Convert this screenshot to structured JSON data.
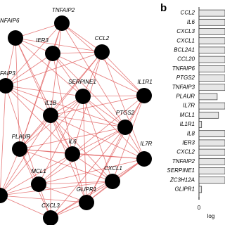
{
  "panel_a": {
    "nodes": [
      {
        "label": "TNFAIP2"
      },
      {
        "label": "NFAIP6"
      },
      {
        "label": "IER3"
      },
      {
        "label": "CCL2"
      },
      {
        "label": "FAIP3"
      },
      {
        "label": "SERPINE1"
      },
      {
        "label": "IL1R1"
      },
      {
        "label": "IL1B"
      },
      {
        "label": "PTGS2"
      },
      {
        "label": "PLAUR"
      },
      {
        "label": "IL6"
      },
      {
        "label": "IL7R"
      },
      {
        "label": "MCL1"
      },
      {
        "label": "CXCL1"
      },
      {
        "label": "GLIPR1"
      },
      {
        "label": "CXCL3"
      }
    ]
  },
  "chart_data": {
    "type": "bar",
    "orientation": "horizontal",
    "panel_label": "b",
    "x_label": "log",
    "categories": [
      "CCL2",
      "IL6",
      "CXCL3",
      "CXCL1",
      "BCL2A1",
      "CCL20",
      "TNFAIP6",
      "PTGS2",
      "TNFAIP3",
      "PLAUR",
      "IL7R",
      "MCL1",
      "IL1R1",
      "IL8",
      "IER3",
      "CXCL2",
      "TNFAIP2",
      "SERPINE1",
      "ZC3H12A",
      "GLIPR1"
    ],
    "values": [
      1,
      1,
      1,
      1,
      1,
      1,
      1,
      1,
      1,
      0.7,
      1,
      0.75,
      0.1,
      1,
      1,
      1,
      1,
      1,
      1,
      0.1
    ],
    "color": "#e6e6e6",
    "xlim": [
      0,
      1
    ],
    "xticks": [
      0
    ]
  }
}
